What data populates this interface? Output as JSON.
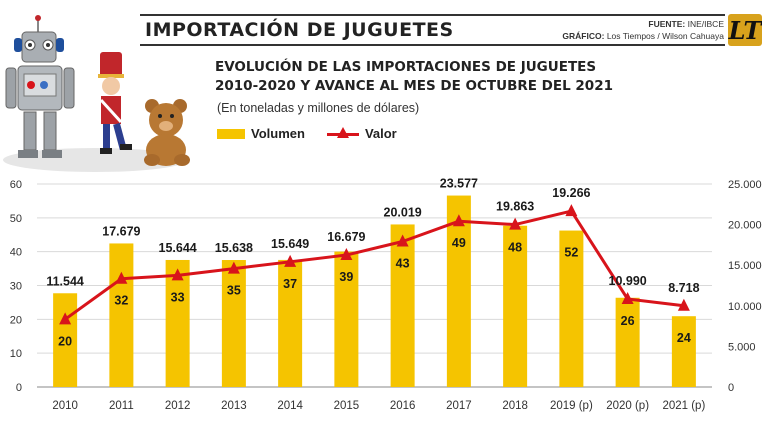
{
  "header": {
    "title": "IMPORTACIÓN DE JUGUETES",
    "source_label": "FUENTE:",
    "source_value": "INE/IBCE",
    "graphic_label": "GRÁFICO:",
    "graphic_value": "Los Tiempos / Wilson Cahuaya",
    "logo_text": "LT"
  },
  "chart_data": {
    "type": "bar",
    "title": "EVOLUCIÓN DE LAS IMPORTACIONES DE JUGUETES",
    "title_line2": "2010-2020 Y AVANCE AL MES DE OCTUBRE DEL 2021",
    "subtitle": "(En toneladas y millones de dólares)",
    "categories": [
      "2010",
      "2011",
      "2012",
      "2013",
      "2014",
      "2015",
      "2016",
      "2017",
      "2018",
      "2019 (p)",
      "2020 (p)",
      "2021 (p)"
    ],
    "series": [
      {
        "name": "Volumen",
        "type": "bar",
        "axis": "right",
        "color": "#f5c400",
        "values": [
          11544,
          17679,
          15644,
          15638,
          15649,
          16679,
          20019,
          23577,
          19863,
          19266,
          10990,
          8718
        ],
        "labels": [
          "11.544",
          "17.679",
          "15.644",
          "15.638",
          "15.649",
          "16.679",
          "20.019",
          "23.577",
          "19.863",
          "19.266",
          "10.990",
          "8.718"
        ]
      },
      {
        "name": "Valor",
        "type": "line",
        "axis": "left",
        "color": "#d8141b",
        "values": [
          20,
          32,
          33,
          35,
          37,
          39,
          43,
          49,
          48,
          52,
          26,
          24
        ],
        "labels": [
          "20",
          "32",
          "33",
          "35",
          "37",
          "39",
          "43",
          "49",
          "48",
          "52",
          "26",
          "24"
        ]
      }
    ],
    "left_axis": {
      "ylim": [
        0,
        60
      ],
      "ticks": [
        "0",
        "10",
        "20",
        "30",
        "40",
        "50",
        "60"
      ]
    },
    "right_axis": {
      "ylim": [
        0,
        25000
      ],
      "ticks": [
        "0",
        "5.000",
        "10.000",
        "15.000",
        "20.000",
        "25.000"
      ]
    },
    "grid": true,
    "legend_placement": "top"
  }
}
